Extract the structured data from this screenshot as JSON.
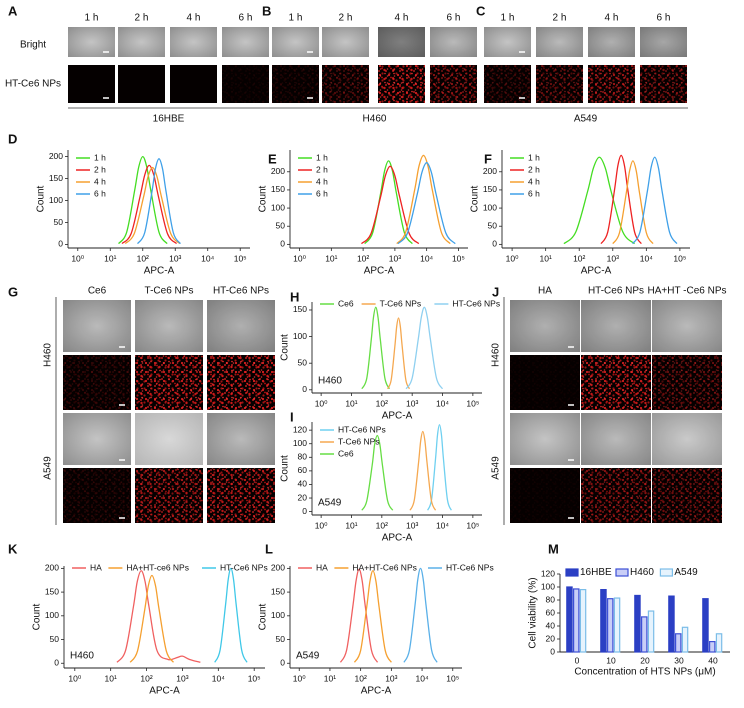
{
  "panel_a": {
    "panel": "A",
    "columns": [
      "1 h",
      "2 h",
      "4 h",
      "6 h"
    ],
    "rows": [
      "Bright",
      "HT-Ce6 NPs"
    ],
    "cell_line": "16HBE"
  },
  "panel_b": {
    "panel": "B",
    "columns": [
      "1 h",
      "2 h",
      "4 h",
      "6 h"
    ],
    "cell_line": "H460"
  },
  "panel_c": {
    "panel": "C",
    "columns": [
      "1 h",
      "2 h",
      "4 h",
      "6 h"
    ],
    "cell_line": "A549"
  },
  "panel_g": {
    "panel": "G",
    "columns": [
      "Ce6",
      "T-Ce6 NPs",
      "HT-Ce6 NPs"
    ],
    "cell_lines": [
      "H460",
      "A549"
    ]
  },
  "panel_j": {
    "panel": "J",
    "columns": [
      "HA",
      "HT-Ce6 NPs",
      "HA+HT -Ce6 NPs"
    ],
    "cell_lines": [
      "H460",
      "A549"
    ]
  },
  "chart_data": [
    {
      "panel": "D",
      "type": "line",
      "x_scale": "log",
      "xlabel": "APC-A",
      "ylabel": "Count",
      "xlim": [
        0.5,
        200000
      ],
      "ylim": [
        -8,
        215
      ],
      "xticks": [
        {
          "value": 1,
          "label": "10⁰"
        },
        {
          "value": 10,
          "label": "10¹"
        },
        {
          "value": 100,
          "label": "10²"
        },
        {
          "value": 1000,
          "label": "10³"
        },
        {
          "value": 10000,
          "label": "10⁴"
        },
        {
          "value": 100000,
          "label": "10⁵"
        }
      ],
      "yticks": [
        0,
        50,
        100,
        150,
        200
      ],
      "legend": "upper left",
      "series": [
        {
          "name": "1 h",
          "color": "#44dd22",
          "x": [
            18,
            32,
            56,
            75,
            100,
            133,
            178,
            316,
            562
          ],
          "values": [
            2,
            28,
            122,
            176,
            200,
            176,
            122,
            28,
            2
          ]
        },
        {
          "name": "2 h",
          "color": "#ee2222",
          "x": [
            23,
            44,
            83,
            115,
            158,
            219,
            302,
            575,
            1096
          ],
          "values": [
            2,
            25,
            110,
            158,
            180,
            158,
            110,
            25,
            2
          ]
        },
        {
          "name": "4 h",
          "color": "#f5a030",
          "x": [
            29,
            55,
            105,
            145,
            200,
            275,
            380,
            724,
            1380
          ],
          "values": [
            2,
            25,
            107,
            154,
            175,
            154,
            107,
            25,
            2
          ]
        },
        {
          "name": "6 h",
          "color": "#3fa0e8",
          "x": [
            69,
            115,
            191,
            245,
            316,
            407,
            525,
            871,
            1445
          ],
          "values": [
            2,
            27,
            119,
            172,
            195,
            172,
            119,
            27,
            2
          ]
        }
      ]
    },
    {
      "panel": "E",
      "type": "line",
      "x_scale": "log",
      "xlabel": "APC-A",
      "ylabel": "Count",
      "xlim": [
        0.5,
        200000
      ],
      "ylim": [
        -10,
        260
      ],
      "xticks": [
        {
          "value": 1,
          "label": "10⁰"
        },
        {
          "value": 10,
          "label": "10¹"
        },
        {
          "value": 100,
          "label": "10²"
        },
        {
          "value": 1000,
          "label": "10³"
        },
        {
          "value": 10000,
          "label": "10⁴"
        },
        {
          "value": 100000,
          "label": "10⁵"
        }
      ],
      "yticks": [
        0,
        50,
        100,
        150,
        200
      ],
      "legend": "upper left",
      "series": [
        {
          "name": "1 h",
          "color": "#44dd22",
          "x": [
            112,
            200,
            355,
            473,
            631,
            841,
            1122,
            1995,
            3548
          ],
          "values": [
            2,
            32,
            140,
            202,
            230,
            202,
            140,
            32,
            2
          ]
        },
        {
          "name": "2 h",
          "color": "#ee2222",
          "x": [
            89,
            178,
            355,
            501,
            708,
            1000,
            1413,
            2818,
            5623
          ],
          "values": [
            2,
            30,
            131,
            189,
            215,
            189,
            131,
            30,
            2
          ]
        },
        {
          "name": "4 h",
          "color": "#f5a030",
          "x": [
            1148,
            2188,
            4169,
            5754,
            7943,
            10965,
            15136,
            28840,
            54954
          ],
          "values": [
            2,
            34,
            149,
            216,
            245,
            216,
            149,
            34,
            2
          ]
        },
        {
          "name": "6 h",
          "color": "#3fa0e8",
          "x": [
            1259,
            2512,
            5012,
            7079,
            10000,
            14125,
            19953,
            39811,
            79433
          ],
          "values": [
            2,
            32,
            137,
            198,
            225,
            198,
            137,
            32,
            2
          ]
        }
      ]
    },
    {
      "panel": "F",
      "type": "line",
      "x_scale": "log",
      "xlabel": "APC-A",
      "ylabel": "Count",
      "xlim": [
        0.5,
        200000
      ],
      "ylim": [
        -10,
        260
      ],
      "xticks": [
        {
          "value": 1,
          "label": "10⁰"
        },
        {
          "value": 10,
          "label": "10¹"
        },
        {
          "value": 100,
          "label": "10²"
        },
        {
          "value": 1000,
          "label": "10³"
        },
        {
          "value": 10000,
          "label": "10⁴"
        },
        {
          "value": 100000,
          "label": "10⁵"
        }
      ],
      "yticks": [
        0,
        50,
        100,
        150,
        200
      ],
      "legend": "upper left",
      "series": [
        {
          "name": "1 h",
          "color": "#44dd22",
          "x": [
            35,
            79,
            178,
            266,
            398,
            596,
            891,
            1995,
            4467
          ],
          "values": [
            2,
            34,
            146,
            211,
            240,
            211,
            146,
            34,
            2
          ]
        },
        {
          "name": "2 h",
          "color": "#ee2222",
          "x": [
            447,
            708,
            1122,
            1413,
            1778,
            2239,
            2818,
            4467,
            7079
          ],
          "values": [
            2,
            34,
            149,
            216,
            245,
            216,
            149,
            34,
            2
          ]
        },
        {
          "name": "4 h",
          "color": "#f5a030",
          "x": [
            1000,
            1585,
            2512,
            3162,
            3981,
            5012,
            6310,
            10000,
            15849
          ],
          "values": [
            2,
            32,
            140,
            202,
            230,
            202,
            140,
            32,
            2
          ]
        },
        {
          "name": "6 h",
          "color": "#3fa0e8",
          "x": [
            3890,
            6457,
            10715,
            13804,
            17783,
            22909,
            29512,
            48978,
            81283
          ],
          "values": [
            2,
            34,
            146,
            211,
            240,
            211,
            146,
            34,
            2
          ]
        }
      ]
    },
    {
      "panel": "H",
      "type": "line",
      "x_scale": "log",
      "xlabel": "APC-A",
      "ylabel": "Count",
      "annotation": "H460",
      "xlim": [
        0.5,
        200000
      ],
      "ylim": [
        -6,
        165
      ],
      "xticks": [
        {
          "value": 1,
          "label": "10⁰"
        },
        {
          "value": 10,
          "label": "10¹"
        },
        {
          "value": 100,
          "label": "10²"
        },
        {
          "value": 1000,
          "label": "10³"
        },
        {
          "value": 10000,
          "label": "10⁴"
        },
        {
          "value": 100000,
          "label": "10⁵"
        }
      ],
      "yticks": [
        0,
        50,
        100,
        150
      ],
      "legend": "top",
      "series": [
        {
          "name": "Ce6",
          "color": "#66dd44",
          "x": [
            22,
            32,
            45,
            53,
            63,
            75,
            89,
            126,
            178
          ],
          "values": [
            2,
            22,
            95,
            136,
            155,
            136,
            95,
            22,
            2
          ]
        },
        {
          "name": "T-Ce6 NPs",
          "color": "#f5a850",
          "x": [
            155,
            204,
            269,
            309,
            355,
            407,
            468,
            617,
            813
          ],
          "values": [
            2,
            19,
            82,
            119,
            135,
            119,
            82,
            19,
            2
          ]
        },
        {
          "name": "HT-Ce6 NPs",
          "color": "#8fd0f0",
          "x": [
            631,
            1000,
            1585,
            1995,
            2512,
            3162,
            3981,
            6310,
            10000
          ],
          "values": [
            2,
            22,
            95,
            136,
            155,
            136,
            95,
            22,
            2
          ]
        }
      ]
    },
    {
      "panel": "I",
      "type": "line",
      "x_scale": "log",
      "xlabel": "APC-A",
      "ylabel": "Count",
      "annotation": "A549",
      "xlim": [
        0.5,
        200000
      ],
      "ylim": [
        -5,
        132
      ],
      "xticks": [
        {
          "value": 1,
          "label": "10⁰"
        },
        {
          "value": 10,
          "label": "10¹"
        },
        {
          "value": 100,
          "label": "10²"
        },
        {
          "value": 1000,
          "label": "10³"
        },
        {
          "value": 10000,
          "label": "10⁴"
        },
        {
          "value": 100000,
          "label": "10⁵"
        }
      ],
      "yticks": [
        0,
        20,
        40,
        60,
        80,
        100,
        120
      ],
      "legend": "upper left",
      "series": [
        {
          "name": "HT-Ce6 NPs",
          "color": "#6fd0f0",
          "x": [
            3236,
            4365,
            5888,
            6839,
            7943,
            9226,
            10715,
            14454,
            19498
          ],
          "values": [
            2,
            18,
            78,
            113,
            128,
            113,
            78,
            18,
            2
          ]
        },
        {
          "name": "T-Ce6 NPs",
          "color": "#f5a850",
          "x": [
            851,
            1175,
            1622,
            1905,
            2239,
            2630,
            3090,
            4266,
            5888
          ],
          "values": [
            2,
            17,
            72,
            104,
            118,
            104,
            72,
            17,
            2
          ]
        },
        {
          "name": "Ce6",
          "color": "#66dd44",
          "x": [
            22,
            32,
            48,
            58,
            71,
            86,
            105,
            155,
            229
          ],
          "values": [
            2,
            16,
            68,
            99,
            112,
            99,
            68,
            16,
            2
          ]
        }
      ]
    },
    {
      "panel": "K",
      "type": "line",
      "x_scale": "log",
      "xlabel": "APC-A",
      "ylabel": "Count",
      "annotation": "H460",
      "xlim": [
        0.5,
        200000
      ],
      "ylim": [
        -10,
        205
      ],
      "xticks": [
        {
          "value": 1,
          "label": "10⁰"
        },
        {
          "value": 10,
          "label": "10¹"
        },
        {
          "value": 100,
          "label": "10²"
        },
        {
          "value": 1000,
          "label": "10³"
        },
        {
          "value": 10000,
          "label": "10⁴"
        },
        {
          "value": 100000,
          "label": "10⁵"
        }
      ],
      "yticks": [
        0,
        50,
        100,
        150,
        200
      ],
      "legend": "top",
      "series": [
        {
          "name": "HA",
          "color": "#f06060",
          "x": [
            15,
            26,
            43,
            55,
            71,
            91,
            117,
            195,
            398,
            708,
            1000,
            1585,
            3162
          ],
          "values": [
            2,
            27,
            119,
            172,
            195,
            172,
            119,
            27,
            8,
            12,
            15,
            8,
            2
          ]
        },
        {
          "name": "HA+HT-ce6 NPs",
          "color": "#f5a030",
          "x": [
            35,
            56,
            89,
            112,
            141,
            178,
            224,
            355,
            562
          ],
          "values": [
            2,
            26,
            113,
            163,
            185,
            163,
            113,
            26,
            2
          ]
        },
        {
          "name": "HT-Ce6 NPs",
          "color": "#40c8e8",
          "x": [
            7943,
            11220,
            15849,
            18836,
            22387,
            26607,
            31623,
            44668,
            63096
          ],
          "values": [
            2,
            28,
            122,
            176,
            200,
            176,
            122,
            28,
            2
          ]
        }
      ]
    },
    {
      "panel": "L",
      "type": "line",
      "x_scale": "log",
      "xlabel": "APC-A",
      "ylabel": "Count",
      "annotation": "A549",
      "xlim": [
        0.5,
        200000
      ],
      "ylim": [
        -10,
        205
      ],
      "xticks": [
        {
          "value": 1,
          "label": "10⁰"
        },
        {
          "value": 10,
          "label": "10¹"
        },
        {
          "value": 100,
          "label": "10²"
        },
        {
          "value": 1000,
          "label": "10³"
        },
        {
          "value": 10000,
          "label": "10⁴"
        },
        {
          "value": 100000,
          "label": "10⁵"
        }
      ],
      "yticks": [
        0,
        50,
        100,
        150,
        200
      ],
      "legend": "top",
      "series": [
        {
          "name": "HA",
          "color": "#f06060",
          "x": [
            22,
            35,
            56,
            71,
            89,
            112,
            141,
            224,
            355
          ],
          "values": [
            2,
            28,
            121,
            174,
            198,
            174,
            121,
            28,
            2
          ]
        },
        {
          "name": "HA+HT-Ce6 NPs",
          "color": "#f5a030",
          "x": [
            63,
            100,
            158,
            200,
            251,
            316,
            398,
            631,
            1000
          ],
          "values": [
            2,
            27,
            119,
            172,
            195,
            172,
            119,
            27,
            2
          ]
        },
        {
          "name": "HT-Ce6 NPs",
          "color": "#5ab0e8",
          "x": [
            2570,
            3890,
            5888,
            7244,
            8913,
            10965,
            13490,
            20417,
            30903
          ],
          "values": [
            2,
            28,
            122,
            176,
            200,
            176,
            122,
            28,
            2
          ]
        }
      ]
    },
    {
      "panel": "M",
      "type": "bar",
      "xlabel": "Concentration of HTS NPs (μM)",
      "ylabel": "Cell viability (%)",
      "categories": [
        "0",
        "10",
        "20",
        "30",
        "40"
      ],
      "ylim": [
        0,
        120
      ],
      "yticks": [
        0,
        20,
        40,
        60,
        80,
        100,
        120
      ],
      "legend": "top",
      "series": [
        {
          "name": "16HBE",
          "color": "#2b3fc4",
          "edgecolor": "#2b3fc4",
          "values": [
            100,
            96,
            87,
            86,
            82
          ]
        },
        {
          "name": "H460",
          "color": "#c9cef7",
          "edgecolor": "#3d4fd6",
          "values": [
            97,
            82,
            54,
            28,
            16
          ]
        },
        {
          "name": "A549",
          "color": "#e6f3fd",
          "edgecolor": "#7bbde8",
          "values": [
            96,
            83,
            63,
            38,
            28
          ]
        }
      ]
    }
  ]
}
